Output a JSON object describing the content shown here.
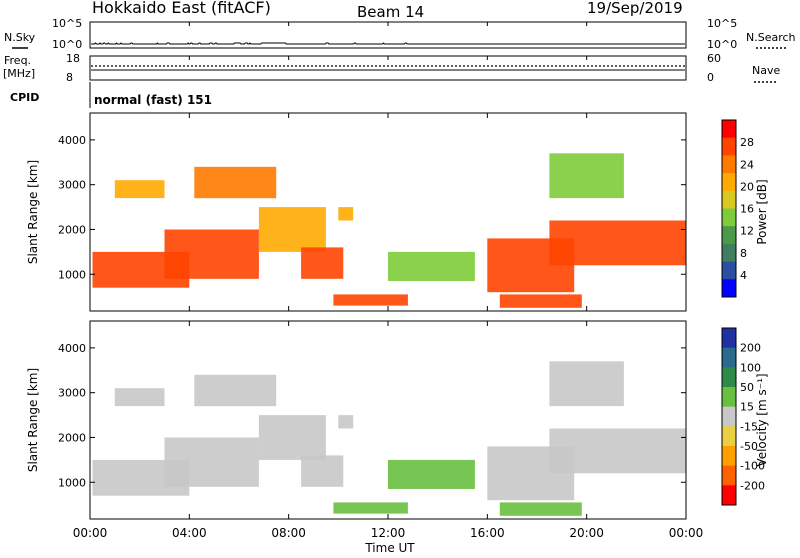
{
  "header": {
    "title": "Hokkaido East (fitACF)",
    "beam": "Beam 14",
    "date": "19/Sep/2019"
  },
  "noise_panel": {
    "left_label": "N.Sky",
    "right_label": "N.Search",
    "left_ticks": [
      "10^5",
      "10^0"
    ],
    "right_ticks": [
      "10^5",
      "10^0"
    ],
    "sky_noise": [
      2,
      2,
      2,
      2,
      2,
      3,
      2,
      2,
      2,
      2,
      3,
      2,
      2,
      2,
      3,
      3,
      2,
      2,
      2,
      3,
      2,
      2,
      2,
      2,
      2,
      2,
      2,
      2,
      3,
      2,
      2,
      2,
      2,
      3,
      2,
      2,
      2,
      2,
      2,
      2,
      2,
      2,
      2,
      2,
      3,
      3,
      2,
      2,
      2,
      2,
      2,
      2,
      2,
      2,
      2,
      2,
      2,
      2,
      2,
      2,
      2,
      2,
      2,
      2,
      2,
      2,
      2,
      2,
      2,
      2,
      2,
      2,
      2,
      3,
      2,
      2,
      2,
      2,
      2,
      2,
      2,
      2,
      2,
      2,
      3,
      3,
      3,
      2,
      2,
      2,
      2,
      2,
      2,
      2,
      2,
      2,
      2,
      2,
      2,
      2,
      2,
      2,
      2,
      2,
      2,
      2,
      2,
      3,
      2,
      2,
      3,
      3,
      2,
      2,
      2,
      2,
      2,
      2,
      2,
      3,
      3,
      2,
      2,
      2,
      2,
      2,
      2,
      2,
      2,
      2,
      2,
      3,
      3,
      3,
      2,
      2,
      2,
      3,
      3,
      2,
      2,
      2,
      2,
      2,
      2,
      2,
      2,
      2,
      2,
      2,
      2,
      2,
      2,
      2,
      2,
      2,
      2,
      2,
      3,
      3,
      3,
      3,
      3,
      3,
      3,
      2,
      2,
      2,
      2,
      2,
      3,
      3,
      3,
      2,
      2,
      3,
      2,
      2,
      2,
      2,
      2,
      2,
      2,
      2,
      2,
      2,
      2,
      2,
      3,
      3,
      3,
      3,
      3,
      3,
      3,
      3,
      3,
      3,
      3,
      3,
      3,
      3,
      3,
      3,
      3,
      3,
      3,
      3,
      3,
      3,
      3,
      3,
      3,
      3,
      3,
      2,
      2,
      2,
      2,
      2,
      2,
      2,
      2,
      2,
      2,
      2,
      2,
      2,
      2,
      2,
      2,
      2,
      2,
      2,
      2,
      2,
      2,
      2,
      2,
      2,
      2,
      2,
      2,
      2,
      2,
      2,
      2,
      2,
      2,
      2,
      2,
      2,
      2,
      2,
      2,
      2,
      2,
      2,
      2,
      3,
      3,
      3,
      2,
      2,
      2,
      2,
      2,
      2,
      2,
      2,
      2,
      2,
      2,
      2,
      2,
      2,
      2,
      2,
      2,
      2,
      2,
      2,
      2,
      2,
      2,
      2,
      2,
      2,
      2,
      2,
      3,
      3,
      2,
      2,
      2,
      2,
      2,
      2,
      2,
      2,
      2,
      2,
      2,
      2,
      2,
      2,
      2,
      2,
      2,
      2,
      2,
      2,
      2,
      2,
      2,
      2,
      2,
      2,
      2,
      2,
      2,
      2,
      3,
      2,
      2,
      2,
      2,
      2,
      2,
      2,
      2,
      2,
      2,
      2,
      2,
      2,
      2,
      2,
      2,
      2,
      2,
      2,
      2,
      2,
      2,
      2,
      3,
      3,
      2,
      2,
      2,
      2,
      2,
      2,
      2,
      2,
      2,
      2,
      2,
      2,
      2,
      2,
      2,
      2,
      2,
      2,
      2,
      2,
      2,
      2,
      2,
      2,
      2,
      2,
      2,
      2,
      2,
      2,
      2,
      2,
      2,
      2,
      2,
      2,
      2,
      2,
      2,
      2,
      2,
      2,
      2,
      2,
      2,
      2,
      2,
      2,
      2,
      2,
      2,
      2,
      2,
      2,
      2,
      2,
      2,
      2,
      2,
      2,
      2,
      2,
      2,
      2,
      2,
      2,
      2,
      2,
      2,
      2,
      2,
      2,
      2,
      2,
      2,
      2,
      2,
      2,
      2,
      2,
      2,
      2,
      2,
      2,
      2,
      2,
      2,
      2,
      2,
      2,
      2,
      2,
      2,
      2,
      2,
      2,
      2,
      2,
      2,
      2,
      2,
      2,
      2,
      2,
      2,
      2,
      2,
      2,
      2,
      2,
      2,
      2,
      2,
      2,
      2,
      2,
      2,
      2,
      2,
      2,
      2,
      2,
      2,
      2,
      2,
      2,
      2,
      2,
      2,
      2,
      2,
      2,
      2,
      2,
      2,
      2,
      2,
      2,
      2,
      2,
      2,
      2,
      2,
      2,
      2,
      2,
      2,
      2,
      2,
      2,
      2,
      2,
      2,
      2,
      2,
      2,
      2,
      2,
      2,
      2,
      2,
      2,
      2,
      2,
      2,
      2,
      2,
      2,
      2,
      2,
      2,
      2,
      2,
      2,
      2,
      2,
      2,
      2,
      2,
      2,
      2,
      2,
      2,
      2,
      2,
      2,
      2,
      2,
      2,
      2,
      2,
      2,
      2,
      2,
      2,
      2,
      2,
      2,
      2,
      2,
      2,
      2,
      2,
      2,
      2,
      2,
      2,
      2,
      2,
      2,
      2,
      2,
      2,
      2,
      2,
      2,
      2,
      2,
      2,
      2,
      2,
      2,
      2,
      2,
      2,
      2,
      2,
      2,
      2,
      2,
      2,
      2,
      2,
      2,
      2,
      2,
      2,
      2,
      2,
      2,
      2,
      2,
      2,
      2,
      2,
      2,
      2,
      2,
      2,
      2,
      2,
      2,
      2,
      2,
      2,
      2,
      2,
      2,
      2,
      2,
      2,
      2,
      2,
      2,
      2,
      2,
      2,
      2,
      2,
      2,
      2,
      2,
      2,
      2,
      2,
      2,
      2,
      2,
      2,
      2,
      2,
      2,
      2,
      2,
      2,
      2,
      2,
      2,
      2,
      2,
      2,
      2,
      2,
      2,
      2,
      2,
      2,
      2,
      2,
      2,
      2,
      2,
      2,
      2,
      2,
      2,
      2
    ]
  },
  "freq_panel": {
    "left_label_1": "Freq.",
    "left_label_2": "[MHz]",
    "left_ticks": [
      "18",
      "8"
    ],
    "right_ticks": [
      "60",
      "0"
    ],
    "right_label": "Nave"
  },
  "cpid_panel": {
    "label": "CPID",
    "value": "normal (fast) 151"
  },
  "power_panel": {
    "ylabel": "Slant Range [km]",
    "yticks": [
      "1000",
      "2000",
      "3000",
      "4000"
    ],
    "colorbar_label": "Power [dB]",
    "colorbar_ticks": [
      "4",
      "8",
      "12",
      "16",
      "20",
      "24",
      "28"
    ],
    "colors": [
      "#0000ff",
      "#2a4fa0",
      "#3f7f5f",
      "#4a9a4a",
      "#7fcc3a",
      "#d8c820",
      "#ffaa00",
      "#ff7a00",
      "#ff4400",
      "#ff0000"
    ]
  },
  "velocity_panel": {
    "ylabel": "Slant Range [km]",
    "yticks": [
      "1000",
      "2000",
      "3000",
      "4000"
    ],
    "colorbar_label": "Velocity [m s⁻¹]",
    "colorbar_ticks": [
      "200",
      "100",
      "50",
      "15",
      "-15",
      "-50",
      "-100",
      "-200"
    ],
    "colors": [
      "#2030a0",
      "#2a6a8a",
      "#2f8a4a",
      "#68c040",
      "#c8c8c8",
      "#e8d040",
      "#ffa000",
      "#ff6000",
      "#ff0000"
    ]
  },
  "xaxis": {
    "ticks": [
      "00:00",
      "04:00",
      "08:00",
      "12:00",
      "16:00",
      "20:00",
      "00:00"
    ],
    "label": "Time UT"
  },
  "chart_data": {
    "type": "heatmap",
    "x_range_hours_ut": [
      0,
      24
    ],
    "y_range_km": [
      180,
      4600
    ],
    "power_range_db": [
      0,
      30
    ],
    "velocity_range_ms": [
      -250,
      250
    ],
    "regions": [
      {
        "t0": 0.1,
        "t1": 4.0,
        "r0": 700,
        "r1": 1500,
        "power": 26,
        "velocity": -5
      },
      {
        "t0": 1.0,
        "t1": 3.0,
        "r0": 2700,
        "r1": 3100,
        "power": 20,
        "velocity": 5
      },
      {
        "t0": 3.0,
        "t1": 6.8,
        "r0": 900,
        "r1": 2000,
        "power": 24,
        "velocity": -5
      },
      {
        "t0": 4.2,
        "t1": 7.5,
        "r0": 2700,
        "r1": 3400,
        "power": 22,
        "velocity": -5
      },
      {
        "t0": 6.8,
        "t1": 9.5,
        "r0": 1500,
        "r1": 2500,
        "power": 20,
        "velocity": 10
      },
      {
        "t0": 8.5,
        "t1": 10.2,
        "r0": 900,
        "r1": 1600,
        "power": 24,
        "velocity": -5
      },
      {
        "t0": 9.8,
        "t1": 12.8,
        "r0": 300,
        "r1": 550,
        "power": 26,
        "velocity": 40
      },
      {
        "t0": 10.0,
        "t1": 10.6,
        "r0": 2200,
        "r1": 2500,
        "power": 20,
        "velocity": 5
      },
      {
        "t0": 12.0,
        "t1": 15.5,
        "r0": 850,
        "r1": 1500,
        "power": 12,
        "velocity": 80
      },
      {
        "t0": 16.0,
        "t1": 19.5,
        "r0": 600,
        "r1": 1800,
        "power": 26,
        "velocity": -5
      },
      {
        "t0": 16.5,
        "t1": 19.8,
        "r0": 250,
        "r1": 550,
        "power": 24,
        "velocity": 30
      },
      {
        "t0": 18.5,
        "t1": 21.5,
        "r0": 2700,
        "r1": 3700,
        "power": 14,
        "velocity": 20
      },
      {
        "t0": 18.5,
        "t1": 24.0,
        "r0": 1200,
        "r1": 2200,
        "power": 26,
        "velocity": -5
      }
    ]
  }
}
